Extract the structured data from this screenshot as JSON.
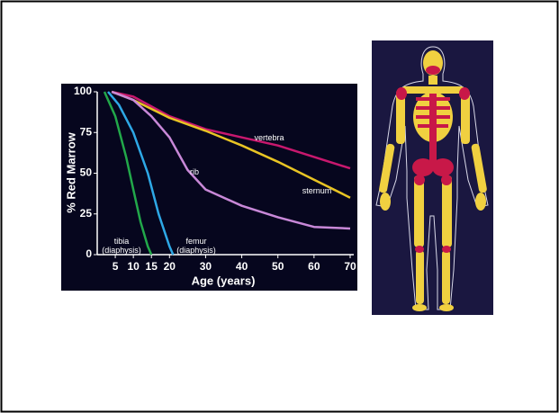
{
  "chart_data": {
    "type": "line",
    "xlabel": "Age (years)",
    "ylabel": "% Red Marrow",
    "xlim": [
      0,
      70
    ],
    "ylim": [
      0,
      100
    ],
    "xticks": [
      5,
      10,
      15,
      20,
      30,
      40,
      50,
      60,
      70
    ],
    "yticks": [
      0,
      25,
      50,
      75,
      100
    ],
    "series": [
      {
        "name": "vertebra",
        "color": "#c8186e",
        "x": [
          4,
          10,
          20,
          30,
          40,
          50,
          60,
          70
        ],
        "values": [
          100,
          97,
          85,
          77,
          72,
          67,
          60,
          53
        ]
      },
      {
        "name": "sternum",
        "color": "#e8c424",
        "x": [
          4,
          10,
          20,
          30,
          40,
          50,
          60,
          70
        ],
        "values": [
          100,
          95,
          84,
          76,
          67,
          57,
          46,
          35
        ]
      },
      {
        "name": "rib",
        "color": "#c888d8",
        "x": [
          4,
          10,
          15,
          20,
          25,
          30,
          40,
          50,
          60,
          70
        ],
        "values": [
          100,
          95,
          85,
          72,
          52,
          40,
          30,
          23,
          17,
          16
        ]
      },
      {
        "name": "femur (diaphysis)",
        "color": "#2ea8e6",
        "x": [
          3,
          6,
          10,
          14,
          17,
          20,
          21
        ],
        "values": [
          100,
          92,
          75,
          50,
          25,
          5,
          0
        ]
      },
      {
        "name": "tibia (diaphysis)",
        "color": "#22a84a",
        "x": [
          2,
          5,
          8,
          10,
          12,
          14,
          15
        ],
        "values": [
          100,
          85,
          60,
          40,
          20,
          5,
          0
        ]
      }
    ]
  }
}
